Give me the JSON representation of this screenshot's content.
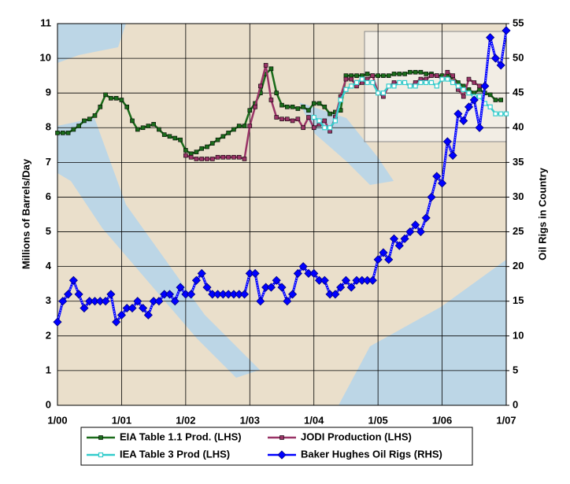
{
  "chart_data": {
    "type": "line",
    "ylabel": "Millions of Barrels/Day",
    "y2label": "Oil Rigs in Country",
    "x": [
      0,
      1,
      2,
      3,
      4,
      5,
      6,
      7,
      8,
      9,
      10,
      11,
      12,
      13,
      14,
      15,
      16,
      17,
      18,
      19,
      20,
      21,
      22,
      23,
      24,
      25,
      26,
      27,
      28,
      29,
      30,
      31,
      32,
      33,
      34,
      35,
      36,
      37,
      38,
      39,
      40,
      41,
      42,
      43,
      44,
      45,
      46,
      47,
      48,
      49,
      50,
      51,
      52,
      53,
      54,
      55,
      56,
      57,
      58,
      59,
      60,
      61,
      62,
      63,
      64,
      65,
      66,
      67,
      68,
      69,
      70,
      71,
      72,
      73,
      74,
      75,
      76,
      77,
      78,
      79,
      80,
      81,
      82,
      83,
      84
    ],
    "xlim": [
      0,
      84
    ],
    "xticks": [
      {
        "value": 0,
        "label": "1/00"
      },
      {
        "value": 12,
        "label": "1/01"
      },
      {
        "value": 24,
        "label": "1/02"
      },
      {
        "value": 36,
        "label": "1/03"
      },
      {
        "value": 48,
        "label": "1/04"
      },
      {
        "value": 60,
        "label": "1/05"
      },
      {
        "value": 72,
        "label": "1/06"
      },
      {
        "value": 84,
        "label": "1/07"
      }
    ],
    "ylim": [
      0,
      11
    ],
    "yticks": [
      0,
      1,
      2,
      3,
      4,
      5,
      6,
      7,
      8,
      9,
      10,
      11
    ],
    "y2lim": [
      0,
      55
    ],
    "y2ticks": [
      0,
      5,
      10,
      15,
      20,
      25,
      30,
      35,
      40,
      45,
      50,
      55
    ],
    "grid": true,
    "legend": "bottom",
    "series": [
      {
        "name": "EIA Table 1.1 Prod. (LHS)",
        "color": "#1a6b1a",
        "marker": "square",
        "values": [
          7.85,
          7.85,
          7.85,
          7.95,
          8.05,
          8.2,
          8.25,
          8.35,
          8.6,
          8.95,
          8.85,
          8.85,
          8.8,
          8.6,
          8.2,
          7.95,
          8.0,
          8.05,
          8.1,
          7.95,
          7.8,
          7.75,
          7.7,
          7.65,
          7.35,
          7.25,
          7.3,
          7.4,
          7.45,
          7.55,
          7.65,
          7.75,
          7.85,
          7.95,
          8.05,
          8.05,
          8.5,
          8.7,
          9.0,
          9.55,
          9.7,
          9.0,
          8.65,
          8.6,
          8.6,
          8.55,
          8.6,
          8.5,
          8.7,
          8.7,
          8.6,
          8.4,
          8.45,
          8.5,
          9.5,
          9.5,
          9.5,
          9.5,
          9.55,
          9.5,
          9.5,
          9.5,
          9.5,
          9.55,
          9.55,
          9.55,
          9.6,
          9.6,
          9.6,
          9.55,
          9.55,
          9.5,
          9.5,
          9.5,
          9.45,
          9.3,
          9.2,
          9.1,
          9.0,
          9.1,
          9.0,
          8.95,
          8.8,
          8.8,
          null
        ]
      },
      {
        "name": "JODI Production (LHS)",
        "color": "#993366",
        "marker": "square",
        "values": [
          null,
          null,
          null,
          null,
          null,
          null,
          null,
          null,
          null,
          null,
          null,
          null,
          null,
          null,
          null,
          null,
          null,
          null,
          null,
          null,
          null,
          null,
          null,
          null,
          7.2,
          7.15,
          7.1,
          7.1,
          7.1,
          7.1,
          7.15,
          7.15,
          7.15,
          7.15,
          7.15,
          7.1,
          8.05,
          8.6,
          9.2,
          9.8,
          8.8,
          8.3,
          8.25,
          8.25,
          8.2,
          8.25,
          8.0,
          8.3,
          8.0,
          8.1,
          8.2,
          7.9,
          8.3,
          8.9,
          9.4,
          9.4,
          9.2,
          9.3,
          9.4,
          9.5,
          9.0,
          8.9,
          9.2,
          9.3,
          9.3,
          9.3,
          9.2,
          9.3,
          9.4,
          9.4,
          9.5,
          9.5,
          9.4,
          9.6,
          9.5,
          9.1,
          8.9,
          9.4,
          9.3,
          9.2,
          null,
          null,
          null,
          null,
          null
        ]
      },
      {
        "name": "IEA Table 3 Prod (LHS)",
        "color": "#33cccc",
        "marker": "open-square",
        "values": [
          null,
          null,
          null,
          null,
          null,
          null,
          null,
          null,
          null,
          null,
          null,
          null,
          null,
          null,
          null,
          null,
          null,
          null,
          null,
          null,
          null,
          null,
          null,
          null,
          null,
          null,
          null,
          null,
          null,
          null,
          null,
          null,
          null,
          null,
          null,
          null,
          null,
          null,
          null,
          null,
          null,
          null,
          null,
          null,
          null,
          null,
          null,
          null,
          8.3,
          8.2,
          8.0,
          8.0,
          8.2,
          8.8,
          9.1,
          9.2,
          9.3,
          9.4,
          9.3,
          9.3,
          9.0,
          9.0,
          9.2,
          9.2,
          9.3,
          9.3,
          9.2,
          9.2,
          9.3,
          9.3,
          9.3,
          9.2,
          9.4,
          9.4,
          9.3,
          9.2,
          9.1,
          9.0,
          8.9,
          8.9,
          8.7,
          8.6,
          8.4,
          8.4,
          8.4
        ]
      },
      {
        "name": "Baker Hughes Oil Rigs (RHS)",
        "color": "#0000ff",
        "marker": "diamond",
        "axis": "y2",
        "values": [
          12,
          15,
          16,
          18,
          16,
          14,
          15,
          15,
          15,
          15,
          16,
          12,
          13,
          14,
          14,
          15,
          14,
          13,
          15,
          15,
          16,
          16,
          15,
          17,
          16,
          16,
          18,
          19,
          17,
          16,
          16,
          16,
          16,
          16,
          16,
          16,
          19,
          19,
          15,
          17,
          17,
          18,
          17,
          15,
          16,
          19,
          20,
          19,
          19,
          18,
          18,
          16,
          16,
          17,
          18,
          17,
          18,
          18,
          18,
          18,
          21,
          22,
          21,
          24,
          23,
          24,
          25,
          26,
          25,
          27,
          30,
          33,
          32,
          38,
          36,
          42,
          41,
          43,
          44,
          40,
          46,
          53,
          50,
          49,
          54
        ]
      }
    ]
  }
}
